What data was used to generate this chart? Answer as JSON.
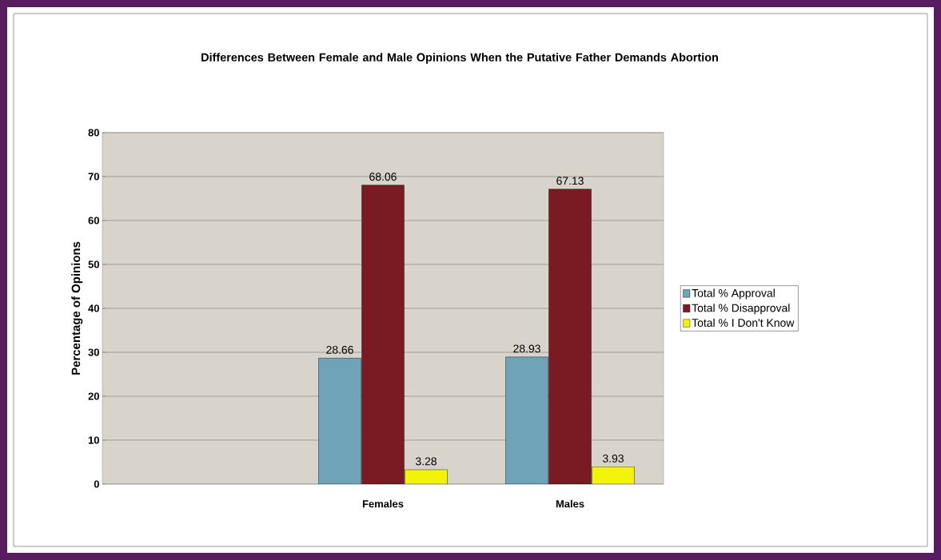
{
  "chart_data": {
    "type": "bar",
    "title": "Differences Between Female and Male Opinions When the Putative Father Demands Abortion",
    "ylabel": "Percentage of Opinions",
    "categories": [
      null,
      "Females",
      "Males"
    ],
    "series": [
      {
        "name": "Total % Approval",
        "color": "#6fa3b8",
        "values": [
          null,
          28.66,
          28.93
        ]
      },
      {
        "name": "Total % Disapproval",
        "color": "#7a1a22",
        "values": [
          null,
          68.06,
          67.13
        ]
      },
      {
        "name": "Total % I Don't Know",
        "color": "#f2f20a",
        "values": [
          null,
          3.28,
          3.93
        ]
      }
    ],
    "ylim": [
      0,
      80
    ],
    "yticks": [
      0,
      10,
      20,
      30,
      40,
      50,
      60,
      70,
      80
    ],
    "grid": "y",
    "legend": "right",
    "data_labels": true
  }
}
